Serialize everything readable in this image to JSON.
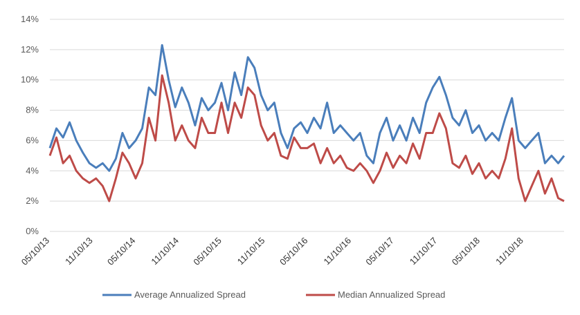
{
  "chart_data": {
    "type": "line",
    "title": "",
    "xlabel": "",
    "ylabel": "",
    "ylim": [
      0,
      14
    ],
    "y_ticks": [
      "0%",
      "2%",
      "4%",
      "6%",
      "8%",
      "10%",
      "12%",
      "14%"
    ],
    "x_ticks": [
      "05/10/13",
      "11/10/13",
      "05/10/14",
      "11/10/14",
      "05/10/15",
      "11/10/15",
      "05/10/16",
      "11/10/16",
      "05/10/17",
      "11/10/17",
      "05/10/18",
      "11/10/18"
    ],
    "x_range": [
      "05/10/13",
      "04/30/19"
    ],
    "grid": "horizontal",
    "legend": "bottom",
    "series": [
      {
        "name": "Average Annualized Spread",
        "color": "#4a7ebb",
        "x": [
          "05/10/13",
          "06/07/13",
          "07/05/13",
          "08/02/13",
          "08/30/13",
          "09/27/13",
          "10/25/13",
          "11/22/13",
          "12/20/13",
          "01/17/14",
          "02/14/14",
          "03/14/14",
          "04/11/14",
          "05/09/14",
          "06/06/14",
          "07/04/14",
          "08/01/14",
          "08/29/14",
          "09/26/14",
          "10/24/14",
          "11/21/14",
          "12/19/14",
          "01/16/15",
          "02/13/15",
          "03/13/15",
          "04/10/15",
          "05/08/15",
          "06/05/15",
          "07/03/15",
          "07/31/15",
          "08/28/15",
          "09/25/15",
          "10/23/15",
          "11/20/15",
          "12/18/15",
          "01/15/16",
          "02/12/16",
          "03/11/16",
          "04/08/16",
          "05/06/16",
          "06/03/16",
          "07/01/16",
          "07/29/16",
          "08/26/16",
          "09/23/16",
          "10/21/16",
          "11/18/16",
          "12/16/16",
          "01/13/17",
          "02/10/17",
          "03/10/17",
          "04/07/17",
          "05/05/17",
          "06/02/17",
          "06/30/17",
          "07/28/17",
          "08/25/17",
          "09/22/17",
          "10/20/17",
          "11/17/17",
          "12/15/17",
          "01/12/18",
          "02/09/18",
          "03/09/18",
          "04/06/18",
          "05/04/18",
          "06/01/18",
          "06/29/18",
          "07/27/18",
          "08/24/18",
          "09/21/18",
          "10/19/18",
          "11/16/18",
          "12/14/18",
          "01/11/19",
          "02/08/19",
          "03/08/19",
          "04/05/19",
          "04/30/19"
        ],
        "values": [
          5.5,
          6.8,
          6.2,
          7.2,
          6.0,
          5.2,
          4.5,
          4.2,
          4.5,
          4.0,
          4.8,
          6.5,
          5.5,
          6.0,
          6.8,
          9.5,
          9.0,
          12.3,
          10.0,
          8.2,
          9.5,
          8.5,
          7.0,
          8.8,
          8.0,
          8.5,
          9.8,
          8.0,
          10.5,
          9.0,
          11.5,
          10.8,
          9.0,
          8.0,
          8.5,
          6.5,
          5.5,
          6.8,
          7.2,
          6.5,
          7.5,
          6.8,
          8.5,
          6.5,
          7.0,
          6.5,
          6.0,
          6.5,
          5.0,
          4.5,
          6.5,
          7.5,
          6.0,
          7.0,
          6.0,
          7.5,
          6.5,
          8.5,
          9.5,
          10.2,
          9.0,
          7.5,
          7.0,
          8.0,
          6.5,
          7.0,
          6.0,
          6.5,
          6.0,
          7.5,
          8.8,
          6.0,
          5.5,
          6.0,
          6.5,
          4.5,
          5.0,
          4.5,
          5.0
        ]
      },
      {
        "name": "Median Annualized Spread",
        "color": "#be4b48",
        "x": [
          "05/10/13",
          "06/07/13",
          "07/05/13",
          "08/02/13",
          "08/30/13",
          "09/27/13",
          "10/25/13",
          "11/22/13",
          "12/20/13",
          "01/17/14",
          "02/14/14",
          "03/14/14",
          "04/11/14",
          "05/09/14",
          "06/06/14",
          "07/04/14",
          "08/01/14",
          "08/29/14",
          "09/26/14",
          "10/24/14",
          "11/21/14",
          "12/19/14",
          "01/16/15",
          "02/13/15",
          "03/13/15",
          "04/10/15",
          "05/08/15",
          "06/05/15",
          "07/03/15",
          "07/31/15",
          "08/28/15",
          "09/25/15",
          "10/23/15",
          "11/20/15",
          "12/18/15",
          "01/15/16",
          "02/12/16",
          "03/11/16",
          "04/08/16",
          "05/06/16",
          "06/03/16",
          "07/01/16",
          "07/29/16",
          "08/26/16",
          "09/23/16",
          "10/21/16",
          "11/18/16",
          "12/16/16",
          "01/13/17",
          "02/10/17",
          "03/10/17",
          "04/07/17",
          "05/05/17",
          "06/02/17",
          "06/30/17",
          "07/28/17",
          "08/25/17",
          "09/22/17",
          "10/20/17",
          "11/17/17",
          "12/15/17",
          "01/12/18",
          "02/09/18",
          "03/09/18",
          "04/06/18",
          "05/04/18",
          "06/01/18",
          "06/29/18",
          "07/27/18",
          "08/24/18",
          "09/21/18",
          "10/19/18",
          "11/16/18",
          "12/14/18",
          "01/11/19",
          "02/08/19",
          "03/08/19",
          "04/05/19",
          "04/30/19"
        ],
        "values": [
          5.0,
          6.2,
          4.5,
          5.0,
          4.0,
          3.5,
          3.2,
          3.5,
          3.0,
          2.0,
          3.5,
          5.2,
          4.5,
          3.5,
          4.5,
          7.5,
          6.0,
          10.3,
          8.5,
          6.0,
          7.0,
          6.0,
          5.5,
          7.5,
          6.5,
          6.5,
          8.5,
          6.5,
          8.5,
          7.5,
          9.5,
          9.0,
          7.0,
          6.0,
          6.5,
          5.0,
          4.8,
          6.2,
          5.5,
          5.5,
          5.8,
          4.5,
          5.5,
          4.5,
          5.0,
          4.2,
          4.0,
          4.5,
          4.0,
          3.2,
          4.0,
          5.2,
          4.2,
          5.0,
          4.5,
          5.8,
          4.8,
          6.5,
          6.5,
          7.8,
          6.8,
          4.5,
          4.2,
          5.0,
          3.8,
          4.5,
          3.5,
          4.0,
          3.5,
          4.8,
          6.8,
          3.5,
          2.0,
          3.0,
          4.0,
          2.5,
          3.5,
          2.2,
          2.0
        ]
      }
    ]
  }
}
